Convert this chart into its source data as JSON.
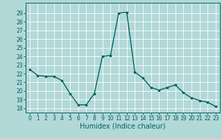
{
  "x": [
    0,
    1,
    2,
    3,
    4,
    5,
    6,
    7,
    8,
    9,
    10,
    11,
    12,
    13,
    14,
    15,
    16,
    17,
    18,
    19,
    20,
    21,
    22,
    23
  ],
  "y": [
    22.5,
    21.8,
    21.7,
    21.7,
    21.2,
    19.7,
    18.4,
    18.4,
    19.7,
    24.0,
    24.1,
    29.0,
    29.1,
    22.2,
    21.5,
    20.4,
    20.1,
    20.4,
    20.7,
    19.8,
    19.2,
    18.9,
    18.7,
    18.2
  ],
  "line_color": "#006060",
  "marker": "s",
  "marker_size": 2.0,
  "bg_color": "#b2d8d8",
  "grid_color": "#ffffff",
  "xlabel": "Humidex (Indice chaleur)",
  "ylim": [
    17.5,
    30.2
  ],
  "xlim": [
    -0.5,
    23.5
  ],
  "yticks": [
    18,
    19,
    20,
    21,
    22,
    23,
    24,
    25,
    26,
    27,
    28,
    29
  ],
  "xticks": [
    0,
    1,
    2,
    3,
    4,
    5,
    6,
    7,
    8,
    9,
    10,
    11,
    12,
    13,
    14,
    15,
    16,
    17,
    18,
    19,
    20,
    21,
    22,
    23
  ],
  "tick_fontsize": 5.5,
  "xlabel_fontsize": 7.0,
  "line_width": 1.0
}
